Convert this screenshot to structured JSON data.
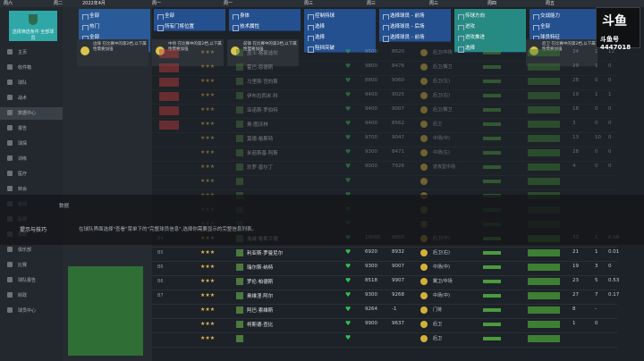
{
  "topbar": {
    "items": [
      "周六",
      "周二",
      "2022年4月",
      "周一",
      "周一",
      "周三",
      "周三",
      "周三",
      "周四",
      "周五"
    ]
  },
  "sidebar": {
    "club_caption": "选择筛选条件 全部球员",
    "items": [
      "主页",
      "收件箱",
      "球队",
      "战术",
      "数据中心",
      "报告",
      "球探",
      "训练",
      "医疗",
      "转会",
      "新闻",
      "联赛",
      "财政",
      "俱乐部",
      "比赛",
      "球队报告",
      "财政",
      "球员中心"
    ]
  },
  "filters": {
    "col1": [
      "全部",
      "热门",
      "全部",
      "热门球员"
    ],
    "col2": [
      "全部",
      "所有门将位置"
    ],
    "col3": [
      "身体",
      "技术属性"
    ],
    "col4": [
      "控制持球",
      "选择",
      "选择",
      "阻挡突破"
    ],
    "col5": [
      "选择球员 - 前场",
      "选择球员 - 后场",
      "选择球员 - 前场"
    ],
    "col6": [
      "传球方向",
      "进攻",
      "进攻推进",
      "选择"
    ],
    "col7": [
      "交战能力",
      "全部",
      "球员特征"
    ]
  },
  "info_cards": [
    "边锋 在比赛中的第2档,以下属性需要加强",
    "中场 在比赛中的第2档,以下属性需要加强",
    "前锋 在比赛中的第2档,以下属性需要加强",
    "后卫 在比赛中的第2档,以下属性需要加强"
  ],
  "overlay": {
    "title": "提示与技巧",
    "body": "在球队界面选择\"查看\"菜单下的\"完整球员信息\",选择你需要显示的完整信息列表。",
    "label": "数据"
  },
  "rows": [
    {
      "num": "",
      "name": "盖士·格蒙迪坎",
      "v1": "9500",
      "v2": "8620",
      "role": "后卫/中场",
      "c1": "34",
      "c2": "1",
      "c3": "12",
      "dim": true
    },
    {
      "num": "",
      "name": "霍巴·恩德斯",
      "v1": "9800",
      "v2": "8476",
      "role": "后卫/翼卫",
      "c1": "29",
      "c2": "1",
      "c3": "0",
      "dim": true
    },
    {
      "num": "",
      "name": "马里斯·宫的斯",
      "v1": "8800",
      "v2": "9060",
      "role": "后卫(左)",
      "c1": "28",
      "c2": "0",
      "c3": "0",
      "dim": true
    },
    {
      "num": "",
      "name": "伊布拉西米·科",
      "v1": "9400",
      "v2": "9025",
      "role": "后卫(右)",
      "c1": "19",
      "c2": "1",
      "c3": "1",
      "dim": true
    },
    {
      "num": "",
      "name": "亚诺斯·罗伯特",
      "v1": "9400",
      "v2": "9007",
      "role": "后卫/翼卫",
      "c1": "18",
      "c2": "0",
      "c3": "0",
      "dim": true
    },
    {
      "num": "",
      "name": "奥·图沃林",
      "v1": "9400",
      "v2": "8562",
      "role": "后卫",
      "c1": "3",
      "c2": "0",
      "c3": "0",
      "dim": true
    },
    {
      "num": "",
      "name": "莫德·格斯特",
      "v1": "9700",
      "v2": "9047",
      "role": "中场(中)",
      "c1": "13",
      "c2": "10",
      "c3": "0",
      "dim": true
    },
    {
      "num": "",
      "name": "米若斯基·阿斯",
      "v1": "9300",
      "v2": "8471",
      "role": "中场(左)",
      "c1": "28",
      "c2": "0",
      "c3": "0",
      "dim": true
    },
    {
      "num": "",
      "name": "珍罗·普尔丁",
      "v1": "9000",
      "v2": "7926",
      "role": "进攻型中场",
      "c1": "4",
      "c2": "0",
      "c3": "0",
      "dim": true
    },
    {
      "num": "",
      "name": "",
      "v1": "",
      "v2": "",
      "role": "",
      "c1": "",
      "c2": "",
      "c3": "",
      "dim": true
    },
    {
      "num": "",
      "name": "",
      "v1": "",
      "v2": "",
      "role": "",
      "c1": "",
      "c2": "",
      "c3": "",
      "dim": true
    },
    {
      "num": "",
      "name": "",
      "v1": "",
      "v2": "",
      "role": "",
      "c1": "",
      "c2": "",
      "c3": "",
      "dim": true
    },
    {
      "num": "",
      "name": "",
      "v1": "",
      "v2": "",
      "role": "",
      "c1": "",
      "c2": "",
      "c3": "",
      "dim": true
    },
    {
      "num": "B4",
      "name": "洛威·鲁斯兰德",
      "v1": "10000",
      "v2": "9850",
      "role": "后卫(中)",
      "c1": "33",
      "c2": "1",
      "c3": "0.18",
      "dim": false
    },
    {
      "num": "B5",
      "name": "利亚斯·罗曼尼尔",
      "v1": "6920",
      "v2": "8932",
      "role": "后卫(右)",
      "c1": "21",
      "c2": "1",
      "c3": "0.01",
      "dim": false
    },
    {
      "num": "B6",
      "name": "瑞尔斯·纳特",
      "v1": "9300",
      "v2": "9007",
      "role": "中场(中)",
      "c1": "19",
      "c2": "3",
      "c3": "0",
      "dim": false
    },
    {
      "num": "B6",
      "name": "罗伦·帕德斯",
      "v1": "8518",
      "v2": "9907",
      "role": "翼卫/中场",
      "c1": "23",
      "c2": "5",
      "c3": "0.53",
      "dim": false
    },
    {
      "num": "B7",
      "name": "奥维涅·阿尔",
      "v1": "9300",
      "v2": "9268",
      "role": "中场(中)",
      "c1": "27",
      "c2": "7",
      "c3": "0.17",
      "dim": false
    },
    {
      "num": "",
      "name": "阿巴·索维斯",
      "v1": "9264",
      "v2": "-1",
      "role": "门将",
      "c1": "8",
      "c2": "-",
      "c3": "",
      "dim": false
    },
    {
      "num": "",
      "name": "柯斯德·查比",
      "v1": "9900",
      "v2": "9637",
      "role": "后卫",
      "c1": "1",
      "c2": "0",
      "c3": "",
      "dim": false
    },
    {
      "num": "",
      "name": "",
      "v1": "",
      "v2": "",
      "role": "后卫",
      "c1": "",
      "c2": "",
      "c3": "",
      "dim": false
    }
  ],
  "logo": {
    "brand": "斗鱼",
    "sub": "斗鱼号 4447018"
  }
}
